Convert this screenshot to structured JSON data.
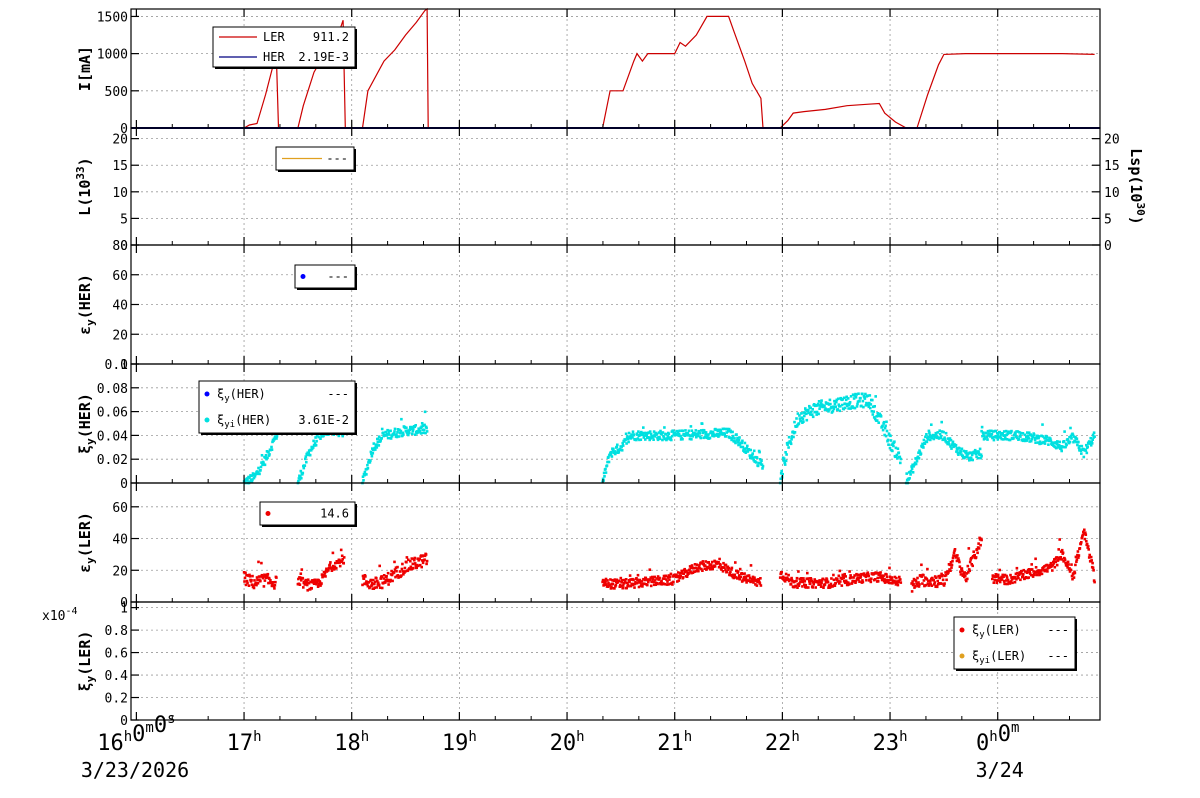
{
  "chart_data": {
    "type": "scatter",
    "time_axis": {
      "start_label": "16h0m0s",
      "ticks": [
        {
          "t": 16,
          "label": "16h0m0s"
        },
        {
          "t": 17,
          "label": "17h"
        },
        {
          "t": 18,
          "label": "18h"
        },
        {
          "t": 19,
          "label": "19h"
        },
        {
          "t": 20,
          "label": "20h"
        },
        {
          "t": 21,
          "label": "21h"
        },
        {
          "t": 22,
          "label": "22h"
        },
        {
          "t": 23,
          "label": "23h"
        },
        {
          "t": 24,
          "label": "0h0m"
        }
      ],
      "range": [
        15.95,
        24.95
      ],
      "date_start": "3/23/2026",
      "date_next": "3/24"
    },
    "panels": [
      {
        "id": "current",
        "ylabel": "I[mA]",
        "ylim": [
          0,
          1600
        ],
        "yticks": [
          0,
          500,
          1000,
          1500
        ],
        "legend": [
          {
            "name": "LER",
            "value": "911.2",
            "color": "#cc0000"
          },
          {
            "name": "HER",
            "value": "2.19E-3",
            "color": "#000080"
          }
        ],
        "series": [
          {
            "name": "LER",
            "color": "#cc0000",
            "style": "line",
            "points": [
              [
                17.0,
                0
              ],
              [
                17.05,
                40
              ],
              [
                17.12,
                60
              ],
              [
                17.2,
                450
              ],
              [
                17.28,
                900
              ],
              [
                17.3,
                950
              ],
              [
                17.32,
                0
              ],
              [
                17.5,
                0
              ],
              [
                17.55,
                300
              ],
              [
                17.65,
                750
              ],
              [
                17.75,
                1000
              ],
              [
                17.85,
                1150
              ],
              [
                17.92,
                1450
              ],
              [
                17.94,
                0
              ],
              [
                18.1,
                0
              ],
              [
                18.15,
                500
              ],
              [
                18.3,
                900
              ],
              [
                18.4,
                1050
              ],
              [
                18.5,
                1250
              ],
              [
                18.6,
                1420
              ],
              [
                18.68,
                1580
              ],
              [
                18.7,
                1600
              ],
              [
                18.71,
                0
              ],
              [
                20.33,
                0
              ],
              [
                20.4,
                500
              ],
              [
                20.52,
                500
              ],
              [
                20.62,
                900
              ],
              [
                20.65,
                1000
              ],
              [
                20.7,
                900
              ],
              [
                20.75,
                1000
              ],
              [
                21.0,
                1000
              ],
              [
                21.05,
                1150
              ],
              [
                21.1,
                1100
              ],
              [
                21.2,
                1250
              ],
              [
                21.3,
                1500
              ],
              [
                21.4,
                1500
              ],
              [
                21.5,
                1500
              ],
              [
                21.55,
                1300
              ],
              [
                21.65,
                900
              ],
              [
                21.72,
                600
              ],
              [
                21.8,
                400
              ],
              [
                21.82,
                0
              ],
              [
                21.98,
                0
              ],
              [
                22.05,
                100
              ],
              [
                22.1,
                200
              ],
              [
                22.2,
                220
              ],
              [
                22.4,
                250
              ],
              [
                22.6,
                300
              ],
              [
                22.8,
                320
              ],
              [
                22.9,
                330
              ],
              [
                22.95,
                200
              ],
              [
                23.05,
                80
              ],
              [
                23.15,
                0
              ],
              [
                23.25,
                0
              ],
              [
                23.35,
                450
              ],
              [
                23.45,
                850
              ],
              [
                23.5,
                990
              ],
              [
                23.7,
                1000
              ],
              [
                24.0,
                1000
              ],
              [
                24.3,
                1000
              ],
              [
                24.6,
                1000
              ],
              [
                24.9,
                990
              ]
            ]
          },
          {
            "name": "HER",
            "color": "#000080",
            "style": "line",
            "points": [
              [
                15.95,
                0
              ],
              [
                24.95,
                0
              ]
            ]
          }
        ]
      },
      {
        "id": "lumi",
        "ylabel": "L(10^33)",
        "ylim": [
          0,
          22
        ],
        "yticks": [
          0,
          5,
          10,
          15,
          20
        ],
        "right_axis": {
          "label": "Lsp(10^30)",
          "ylim": [
            0,
            22
          ],
          "yticks": [
            0,
            5,
            10,
            15,
            20
          ]
        },
        "legend": [
          {
            "name": "",
            "value": "---",
            "color": "#e0a020"
          }
        ],
        "series": []
      },
      {
        "id": "emit_her",
        "ylabel": "εy(HER)",
        "ylim": [
          0,
          80
        ],
        "yticks": [
          0,
          20,
          40,
          60,
          80
        ],
        "legend": [
          {
            "name": "",
            "value": "---",
            "color": "#0000ff"
          }
        ],
        "series": []
      },
      {
        "id": "xi_her",
        "ylabel": "ξy(HER)",
        "ylim": [
          0,
          0.1
        ],
        "yticks": [
          0,
          0.02,
          0.04,
          0.06,
          0.08,
          0.1
        ],
        "ytick_labels": [
          "0",
          "0.02",
          "0.04",
          "0.06",
          "0.08",
          "0.1"
        ],
        "legend": [
          {
            "name": "ξy(HER)",
            "value": "---",
            "color": "#0000ff"
          },
          {
            "name": "ξyi(HER)",
            "value": "3.61E-2",
            "color": "#00e0e0"
          }
        ],
        "series": [
          {
            "name": "ξyi(HER)",
            "color": "#00e0e0",
            "style": "dots",
            "segments": [
              {
                "shape": [
                  [
                    17.0,
                    0.0
                  ],
                  [
                    17.1,
                    0.005
                  ],
                  [
                    17.2,
                    0.02
                  ],
                  [
                    17.3,
                    0.04
                  ],
                  [
                    17.32,
                    0.045
                  ]
                ],
                "noise": 0.004
              },
              {
                "shape": [
                  [
                    17.5,
                    0.0
                  ],
                  [
                    17.6,
                    0.025
                  ],
                  [
                    17.7,
                    0.04
                  ],
                  [
                    17.8,
                    0.045
                  ],
                  [
                    17.93,
                    0.042
                  ]
                ],
                "noise": 0.004
              },
              {
                "shape": [
                  [
                    18.1,
                    0.0
                  ],
                  [
                    18.2,
                    0.03
                  ],
                  [
                    18.3,
                    0.04
                  ],
                  [
                    18.5,
                    0.044
                  ],
                  [
                    18.7,
                    0.045
                  ]
                ],
                "noise": 0.004
              },
              {
                "shape": [
                  [
                    20.33,
                    0.0
                  ],
                  [
                    20.4,
                    0.025
                  ],
                  [
                    20.5,
                    0.03
                  ],
                  [
                    20.6,
                    0.04
                  ],
                  [
                    21.0,
                    0.04
                  ],
                  [
                    21.5,
                    0.042
                  ],
                  [
                    21.6,
                    0.035
                  ],
                  [
                    21.75,
                    0.02
                  ],
                  [
                    21.82,
                    0.015
                  ]
                ],
                "noise": 0.004
              },
              {
                "shape": [
                  [
                    21.98,
                    0.0
                  ],
                  [
                    22.05,
                    0.03
                  ],
                  [
                    22.15,
                    0.055
                  ],
                  [
                    22.3,
                    0.062
                  ],
                  [
                    22.6,
                    0.068
                  ],
                  [
                    22.8,
                    0.07
                  ],
                  [
                    22.92,
                    0.05
                  ],
                  [
                    23.0,
                    0.035
                  ],
                  [
                    23.1,
                    0.02
                  ]
                ],
                "noise": 0.006
              },
              {
                "shape": [
                  [
                    23.15,
                    0.0
                  ],
                  [
                    23.25,
                    0.02
                  ],
                  [
                    23.35,
                    0.04
                  ],
                  [
                    23.5,
                    0.04
                  ],
                  [
                    23.6,
                    0.03
                  ],
                  [
                    23.72,
                    0.022
                  ],
                  [
                    23.85,
                    0.025
                  ]
                ],
                "noise": 0.004
              },
              {
                "shape": [
                  [
                    23.85,
                    0.04
                  ],
                  [
                    24.2,
                    0.04
                  ],
                  [
                    24.5,
                    0.035
                  ],
                  [
                    24.6,
                    0.03
                  ],
                  [
                    24.7,
                    0.038
                  ],
                  [
                    24.8,
                    0.025
                  ],
                  [
                    24.9,
                    0.04
                  ]
                ],
                "noise": 0.004
              }
            ]
          }
        ]
      },
      {
        "id": "emit_ler",
        "ylabel": "εy(LER)",
        "ylim": [
          0,
          75
        ],
        "yticks": [
          0,
          20,
          40,
          60
        ],
        "legend": [
          {
            "name": "",
            "value": "14.6",
            "color": "#ee0000"
          }
        ],
        "series": [
          {
            "name": "εy(LER)",
            "color": "#ee0000",
            "style": "dots",
            "segments": [
              {
                "shape": [
                  [
                    17.0,
                    15
                  ],
                  [
                    17.1,
                    12
                  ],
                  [
                    17.2,
                    14
                  ],
                  [
                    17.3,
                    12
                  ]
                ],
                "noise": 4
              },
              {
                "shape": [
                  [
                    17.5,
                    14
                  ],
                  [
                    17.6,
                    10
                  ],
                  [
                    17.7,
                    12
                  ],
                  [
                    17.8,
                    22
                  ],
                  [
                    17.93,
                    27
                  ]
                ],
                "noise": 3
              },
              {
                "shape": [
                  [
                    18.1,
                    14
                  ],
                  [
                    18.2,
                    11
                  ],
                  [
                    18.3,
                    13
                  ],
                  [
                    18.5,
                    22
                  ],
                  [
                    18.7,
                    27
                  ]
                ],
                "noise": 4
              },
              {
                "shape": [
                  [
                    20.33,
                    12
                  ],
                  [
                    20.5,
                    11
                  ],
                  [
                    20.8,
                    13
                  ],
                  [
                    21.0,
                    14
                  ],
                  [
                    21.2,
                    22
                  ],
                  [
                    21.4,
                    24
                  ],
                  [
                    21.6,
                    16
                  ],
                  [
                    21.8,
                    12
                  ]
                ],
                "noise": 3
              },
              {
                "shape": [
                  [
                    21.98,
                    18
                  ],
                  [
                    22.1,
                    12
                  ],
                  [
                    22.5,
                    12
                  ],
                  [
                    22.7,
                    15
                  ],
                  [
                    22.9,
                    16
                  ],
                  [
                    23.1,
                    12
                  ]
                ],
                "noise": 3
              },
              {
                "shape": [
                  [
                    23.2,
                    10
                  ],
                  [
                    23.3,
                    14
                  ],
                  [
                    23.5,
                    13
                  ],
                  [
                    23.6,
                    30
                  ],
                  [
                    23.7,
                    15
                  ],
                  [
                    23.85,
                    40
                  ]
                ],
                "noise": 4
              },
              {
                "shape": [
                  [
                    23.95,
                    15
                  ],
                  [
                    24.1,
                    14
                  ],
                  [
                    24.3,
                    18
                  ],
                  [
                    24.5,
                    22
                  ],
                  [
                    24.6,
                    30
                  ],
                  [
                    24.7,
                    16
                  ],
                  [
                    24.8,
                    45
                  ],
                  [
                    24.9,
                    15
                  ]
                ],
                "noise": 3
              }
            ]
          }
        ]
      },
      {
        "id": "xi_ler",
        "ylabel": "ξy(LER)",
        "ylim": [
          0,
          1.05
        ],
        "yticks": [
          0,
          0.2,
          0.4,
          0.6,
          0.8,
          1
        ],
        "ytick_labels": [
          "0",
          "0.2",
          "0.4",
          "0.6",
          "0.8",
          "1"
        ],
        "exponent": "x10^-4",
        "legend": [
          {
            "name": "ξy(LER)",
            "value": "---",
            "color": "#ee0000"
          },
          {
            "name": "ξyi(LER)",
            "value": "---",
            "color": "#e0a020"
          }
        ],
        "series": []
      }
    ]
  }
}
